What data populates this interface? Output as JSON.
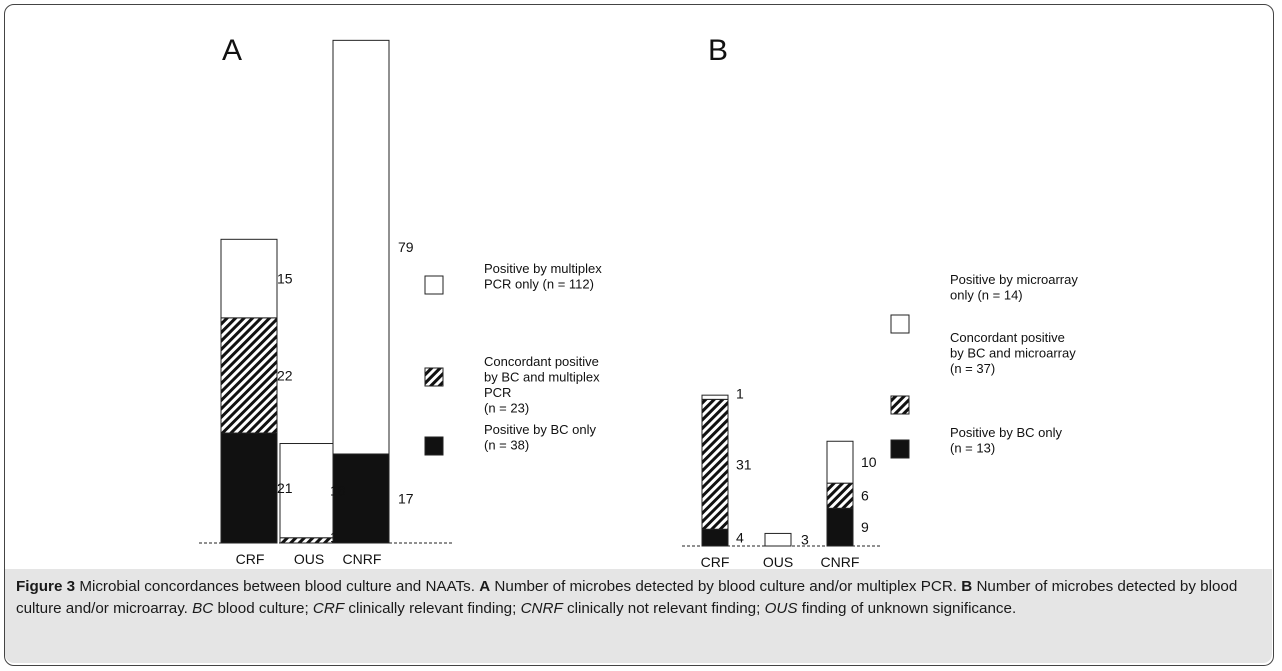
{
  "colors": {
    "bc_only": "#111111",
    "concordant": "#111111",
    "naat_only": "#ffffff",
    "caption_band": "#e5e5e5",
    "outline": "#222222"
  },
  "chart_data": [
    {
      "type": "bar",
      "stacked": true,
      "panel_label": "A",
      "categories": [
        "CRF",
        "OUS",
        "CNRF"
      ],
      "series": [
        {
          "key": "bc_only",
          "values": [
            21,
            0,
            17
          ]
        },
        {
          "key": "concordant",
          "values": [
            22,
            1,
            0
          ]
        },
        {
          "key": "naat_only",
          "values": [
            15,
            18,
            79
          ]
        }
      ],
      "data_labels": [
        {
          "category": "CRF",
          "series": "bc_only",
          "text": "21"
        },
        {
          "category": "CRF",
          "series": "concordant",
          "text": "22"
        },
        {
          "category": "CRF",
          "series": "naat_only",
          "text": "15"
        },
        {
          "category": "OUS",
          "series": "concordant",
          "text": "1"
        },
        {
          "category": "OUS",
          "series": "naat_only",
          "text": "18"
        },
        {
          "category": "CNRF",
          "series": "bc_only",
          "text": "17"
        },
        {
          "category": "CNRF",
          "series": "naat_only",
          "text": "79"
        }
      ],
      "legend": [
        {
          "key": "naat_only",
          "lines": [
            "Positive by multiplex",
            "PCR only (n = 112)"
          ]
        },
        {
          "key": "concordant",
          "lines": [
            "Concordant positive",
            "by BC and multiplex",
            "PCR",
            "(n = 23)"
          ]
        },
        {
          "key": "bc_only",
          "lines": [
            "Positive by BC only",
            "(n = 38)"
          ]
        }
      ],
      "legend_position": "right"
    },
    {
      "type": "bar",
      "stacked": true,
      "panel_label": "B",
      "categories": [
        "CRF",
        "OUS",
        "CNRF"
      ],
      "series": [
        {
          "key": "bc_only",
          "values": [
            4,
            0,
            9
          ]
        },
        {
          "key": "concordant",
          "values": [
            31,
            0,
            6
          ]
        },
        {
          "key": "naat_only",
          "values": [
            1,
            3,
            10
          ]
        }
      ],
      "data_labels": [
        {
          "category": "CRF",
          "series": "bc_only",
          "text": "4"
        },
        {
          "category": "CRF",
          "series": "concordant",
          "text": "31"
        },
        {
          "category": "CRF",
          "series": "naat_only",
          "text": "1"
        },
        {
          "category": "OUS",
          "series": "naat_only",
          "text": "3"
        },
        {
          "category": "CNRF",
          "series": "bc_only",
          "text": "9"
        },
        {
          "category": "CNRF",
          "series": "concordant",
          "text": "6"
        },
        {
          "category": "CNRF",
          "series": "naat_only",
          "text": "10"
        }
      ],
      "legend": [
        {
          "key": "naat_only",
          "lines": [
            "Positive by microarray",
            "only (n = 14)"
          ]
        },
        {
          "key": "concordant",
          "lines": [
            "Concordant positive",
            "by BC and microarray",
            "(n = 37)"
          ]
        },
        {
          "key": "bc_only",
          "lines": [
            "Positive by BC only",
            "(n = 13)"
          ]
        }
      ],
      "legend_position": "right"
    }
  ],
  "caption": {
    "figure_label": "Figure 3",
    "title": "Microbial concordances between blood culture and NAATs.",
    "panel_a_label": "A",
    "panel_a_text": "Number of microbes detected by blood culture and/or multiplex PCR.",
    "panel_b_label": "B",
    "panel_b_text": "Number of microbes detected by blood culture and/or microarray.",
    "abbr_bc": "BC",
    "abbr_bc_def": "blood culture;",
    "abbr_crf": "CRF",
    "abbr_crf_def": "clinically relevant finding;",
    "abbr_cnrf": "CNRF",
    "abbr_cnrf_def": "clinically not relevant finding;",
    "abbr_ous": "OUS",
    "abbr_ous_def": "finding of unknown significance."
  }
}
